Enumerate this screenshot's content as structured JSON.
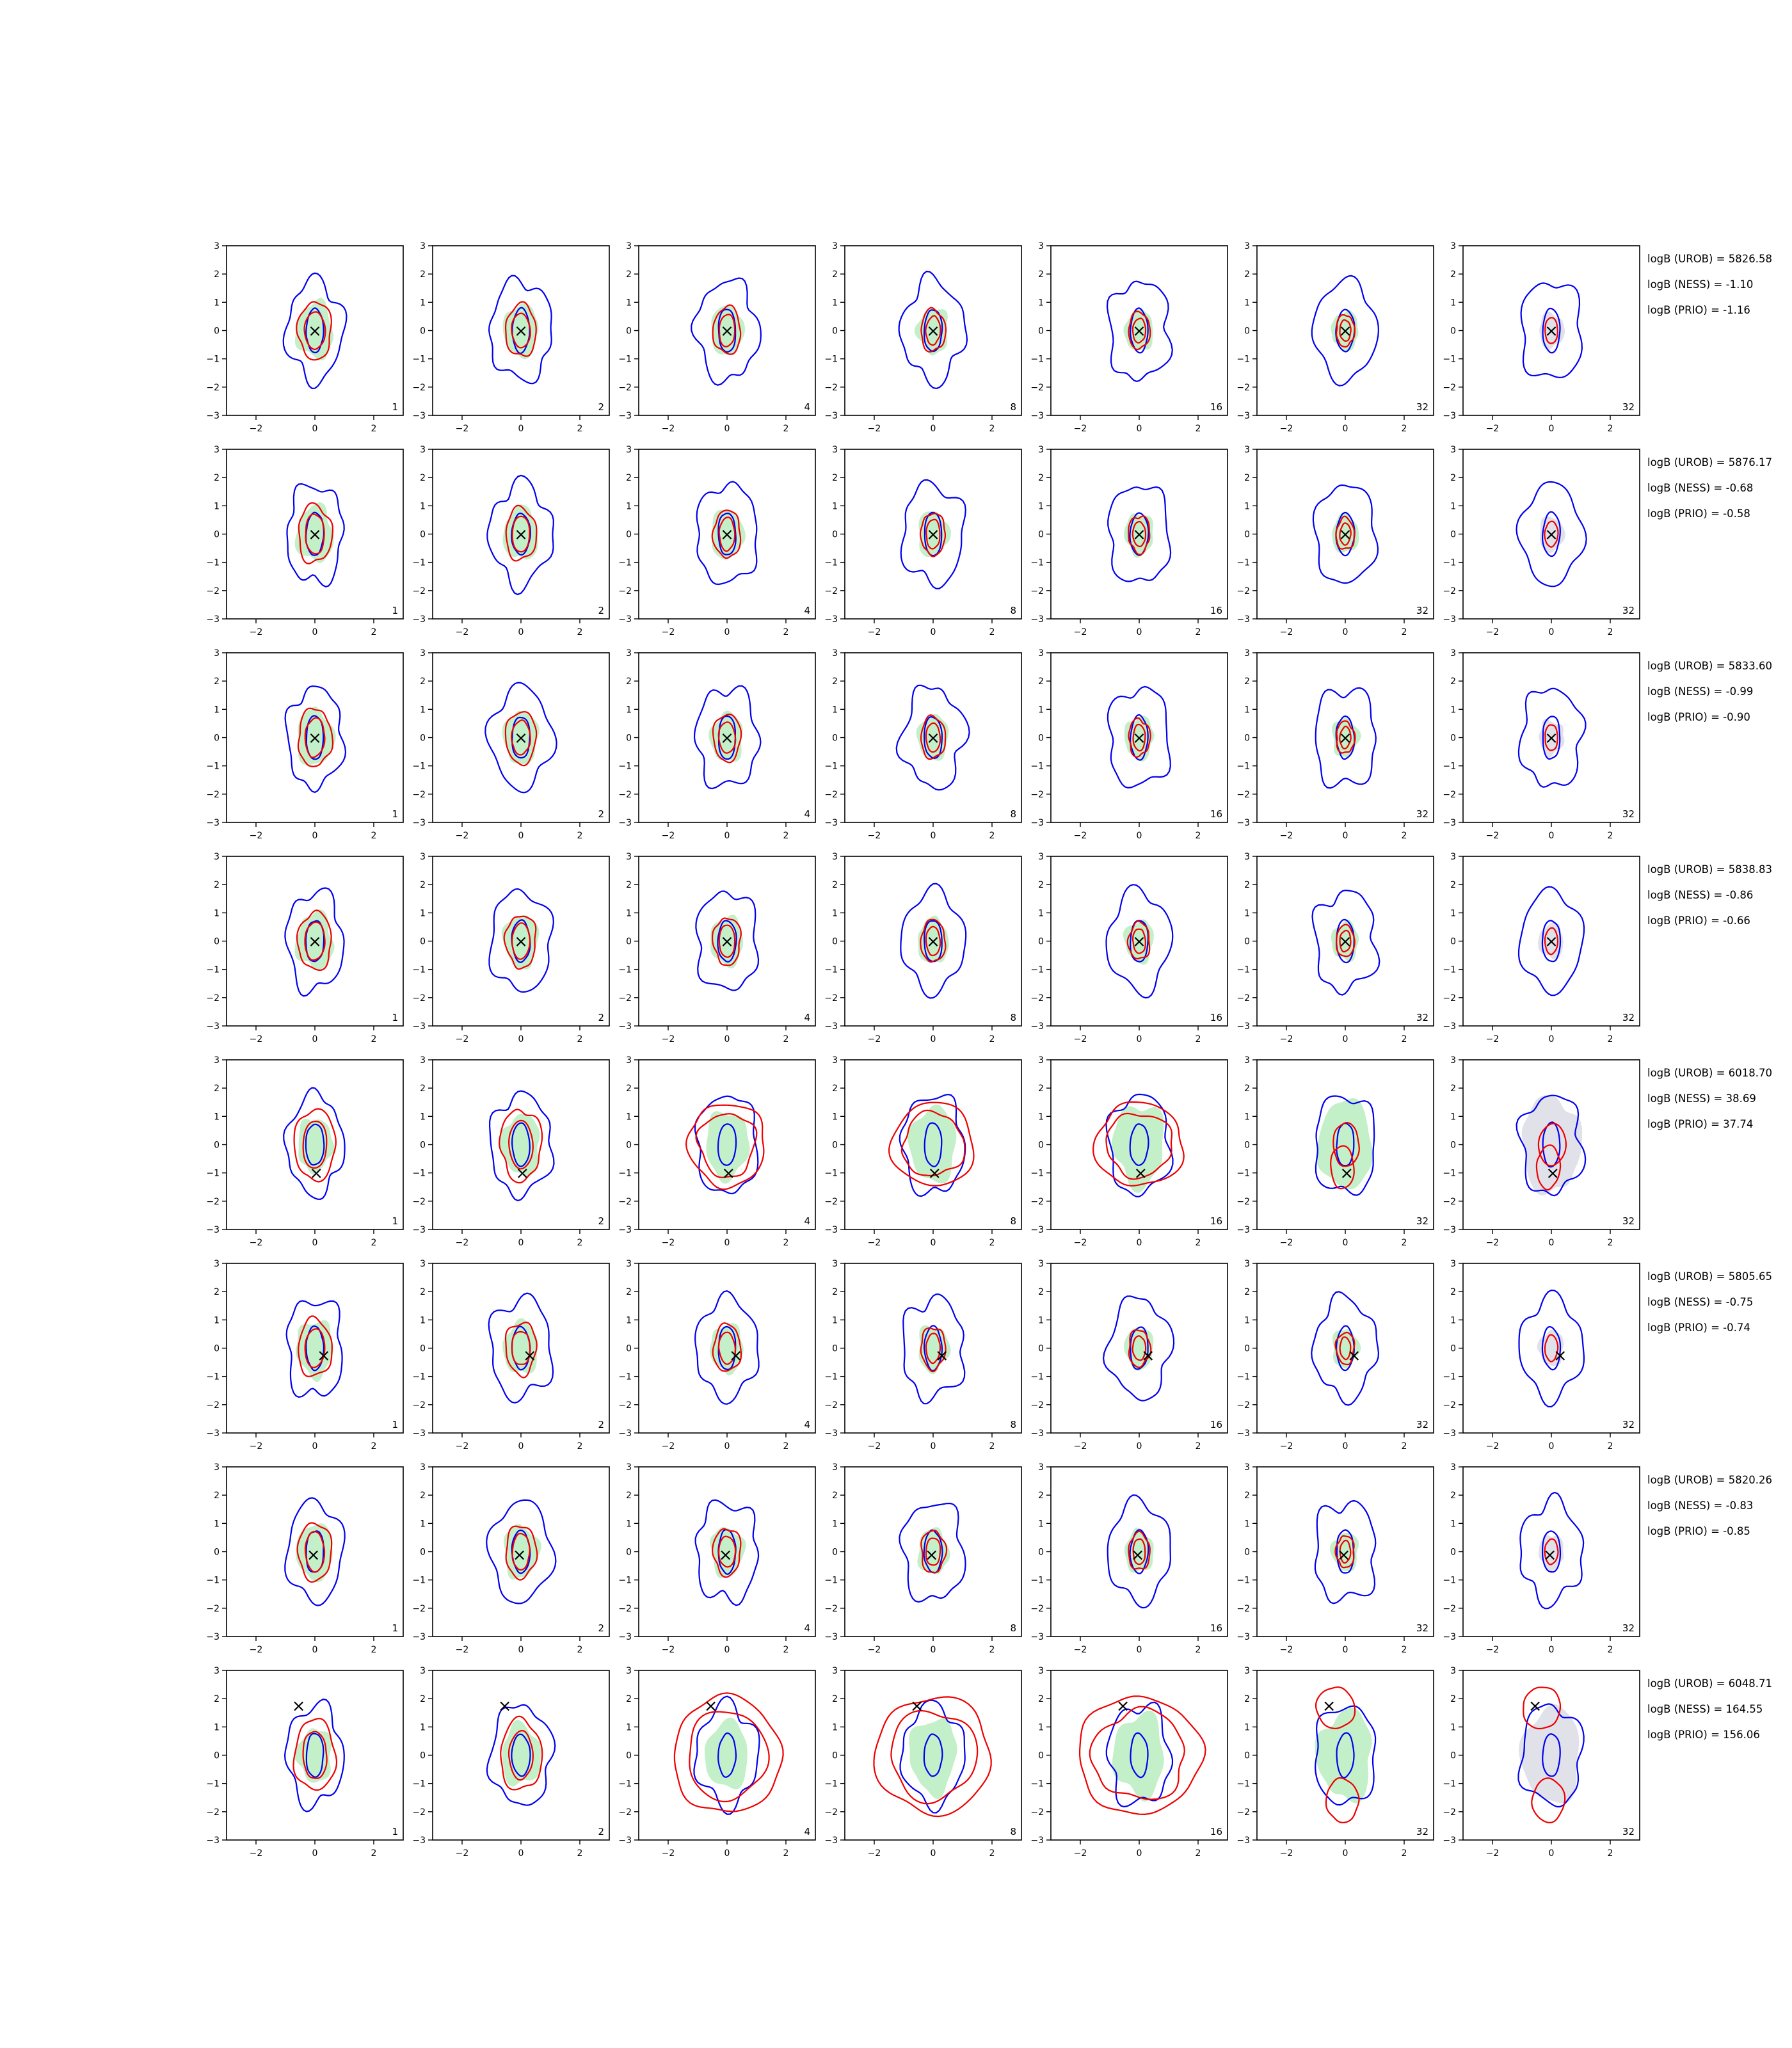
{
  "chart_data": {
    "type": "contour-grid",
    "xlim": [
      -3,
      3
    ],
    "ylim": [
      -3,
      3
    ],
    "xticks": [
      -2,
      0,
      2
    ],
    "yticks": [
      -3,
      -2,
      -1,
      0,
      1,
      2,
      3
    ],
    "xtick_labels": [
      "−2",
      "0",
      "2"
    ],
    "ytick_labels": [
      "−3",
      "−2",
      "−1",
      "0",
      "1",
      "2",
      "3"
    ],
    "grid": false,
    "column_labels": [
      "1",
      "2",
      "4",
      "8",
      "16",
      "32",
      "32"
    ],
    "colors": {
      "fill_green": "#b9ecbf",
      "fill_gray": "#dcdce6",
      "contour_blue": "#0000ee",
      "contour_red": "#ee0000",
      "marker": "#000000"
    },
    "marker_symbol": "×",
    "rows": [
      {
        "marker": [
          0,
          0
        ],
        "stats": [
          "logB (UROB) = 5826.58",
          "logB (NESS) = -1.10",
          "logB (PRIO) = -1.16"
        ]
      },
      {
        "marker": [
          0,
          0
        ],
        "stats": [
          "logB (UROB) = 5876.17",
          "logB (NESS) = -0.68",
          "logB (PRIO) = -0.58"
        ]
      },
      {
        "marker": [
          0,
          0
        ],
        "stats": [
          "logB (UROB) = 5833.60",
          "logB (NESS) = -0.99",
          "logB (PRIO) = -0.90"
        ]
      },
      {
        "marker": [
          0,
          0
        ],
        "stats": [
          "logB (UROB) = 5838.83",
          "logB (NESS) = -0.86",
          "logB (PRIO) = -0.66"
        ]
      },
      {
        "marker": [
          0.05,
          -1.0
        ],
        "stats": [
          "logB (UROB) = 6018.70",
          "logB (NESS) = 38.69",
          "logB (PRIO) = 37.74"
        ]
      },
      {
        "marker": [
          0.3,
          -0.25
        ],
        "stats": [
          "logB (UROB) = 5805.65",
          "logB (NESS) = -0.75",
          "logB (PRIO) = -0.74"
        ]
      },
      {
        "marker": [
          -0.05,
          -0.1
        ],
        "stats": [
          "logB (UROB) = 5820.26",
          "logB (NESS) = -0.83",
          "logB (PRIO) = -0.85"
        ]
      },
      {
        "marker": [
          -0.55,
          1.75
        ],
        "stats": [
          "logB (UROB) = 6048.71",
          "logB (NESS) = 164.55",
          "logB (PRIO) = 156.06"
        ]
      }
    ]
  }
}
